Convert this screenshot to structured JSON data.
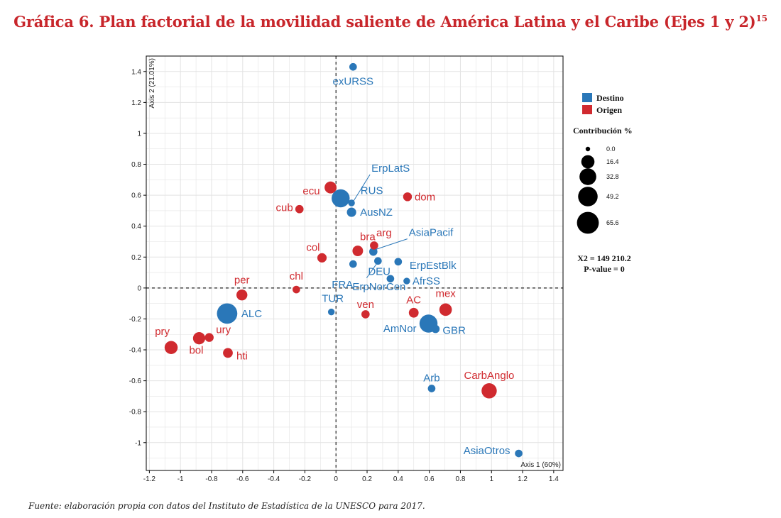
{
  "header": {
    "title": "Gráfica 6. Plan factorial de la movilidad saliente de América Latina y el Caribe (Ejes 1 y 2)",
    "title_footnote": "15"
  },
  "footer": {
    "source": "Fuente: elaboración propia con datos del Instituto de Estadística de la UNESCO para 2017."
  },
  "colors": {
    "Destino": "#2a77b8",
    "Origen": "#d02a2f",
    "axis": "#000000",
    "grid": "#e3e3e3"
  },
  "chart_data": {
    "type": "scatter",
    "xlabel": "Axis 1 (60%)",
    "ylabel": "Axis 2 (21.01%)",
    "xlim": [
      -1.22,
      1.46
    ],
    "ylim": [
      -1.18,
      1.5
    ],
    "xticks": [
      -1.2,
      -1,
      -0.8,
      -0.6,
      -0.4,
      -0.2,
      0,
      0.2,
      0.4,
      0.6,
      0.8,
      1,
      1.2,
      1.4
    ],
    "yticks": [
      1.4,
      1.2,
      1,
      0.8,
      0.6,
      0.4,
      0.2,
      0,
      -0.2,
      -0.4,
      -0.6,
      -0.8,
      -1
    ],
    "grid": true,
    "legend": {
      "groups": [
        {
          "name": "Destino"
        },
        {
          "name": "Origen"
        }
      ],
      "size_title": "Contribución %",
      "size_values": [
        0.0,
        16.4,
        32.8,
        49.2,
        65.6
      ],
      "stats": [
        "X2 = 149 210.2",
        "P-value = 0"
      ]
    },
    "points": [
      {
        "label": "exURSS",
        "group": "Destino",
        "x": 0.11,
        "y": 1.43,
        "contribution": 2
      },
      {
        "label": "ErpLatS",
        "group": "Destino",
        "x": 0.1,
        "y": 0.55,
        "contribution": 1
      },
      {
        "label": "RUS",
        "group": "Destino",
        "x": 0.03,
        "y": 0.58,
        "contribution": 40
      },
      {
        "label": "AusNZ",
        "group": "Destino",
        "x": 0.1,
        "y": 0.49,
        "contribution": 5
      },
      {
        "label": "AsiaPacif",
        "group": "Destino",
        "x": 0.24,
        "y": 0.235,
        "contribution": 3
      },
      {
        "label": "ErpEstBlk",
        "group": "Destino",
        "x": 0.4,
        "y": 0.17,
        "contribution": 2
      },
      {
        "label": "FRA",
        "group": "Destino",
        "x": 0.11,
        "y": 0.155,
        "contribution": 2
      },
      {
        "label": "DEU",
        "group": "Destino",
        "x": 0.27,
        "y": 0.175,
        "contribution": 2
      },
      {
        "label": "AfrSS",
        "group": "Destino",
        "x": 0.455,
        "y": 0.045,
        "contribution": 1
      },
      {
        "label": "ErpNorCen",
        "group": "Destino",
        "x": 0.35,
        "y": 0.06,
        "contribution": 2
      },
      {
        "label": "TUR",
        "group": "Destino",
        "x": -0.03,
        "y": -0.155,
        "contribution": 1
      },
      {
        "label": "ALC",
        "group": "Destino",
        "x": -0.7,
        "y": -0.165,
        "contribution": 55
      },
      {
        "label": "AmNor",
        "group": "Destino",
        "x": 0.595,
        "y": -0.23,
        "contribution": 40
      },
      {
        "label": "GBR",
        "group": "Destino",
        "x": 0.64,
        "y": -0.265,
        "contribution": 3
      },
      {
        "label": "Arb",
        "group": "Destino",
        "x": 0.615,
        "y": -0.65,
        "contribution": 2
      },
      {
        "label": "AsiaOtros",
        "group": "Destino",
        "x": 1.175,
        "y": -1.07,
        "contribution": 2
      },
      {
        "label": "ecu",
        "group": "Origen",
        "x": -0.035,
        "y": 0.65,
        "contribution": 12
      },
      {
        "label": "dom",
        "group": "Origen",
        "x": 0.46,
        "y": 0.59,
        "contribution": 4
      },
      {
        "label": "cub",
        "group": "Origen",
        "x": -0.235,
        "y": 0.51,
        "contribution": 3
      },
      {
        "label": "col",
        "group": "Origen",
        "x": -0.09,
        "y": 0.195,
        "contribution": 5
      },
      {
        "label": "bra",
        "group": "Origen",
        "x": 0.14,
        "y": 0.24,
        "contribution": 8
      },
      {
        "label": "arg",
        "group": "Origen",
        "x": 0.245,
        "y": 0.275,
        "contribution": 3
      },
      {
        "label": "chl",
        "group": "Origen",
        "x": -0.255,
        "y": -0.01,
        "contribution": 2
      },
      {
        "label": "per",
        "group": "Origen",
        "x": -0.605,
        "y": -0.045,
        "contribution": 9
      },
      {
        "label": "ven",
        "group": "Origen",
        "x": 0.19,
        "y": -0.17,
        "contribution": 3
      },
      {
        "label": "AC",
        "group": "Origen",
        "x": 0.5,
        "y": -0.16,
        "contribution": 6
      },
      {
        "label": "mex",
        "group": "Origen",
        "x": 0.705,
        "y": -0.14,
        "contribution": 14
      },
      {
        "label": "pry",
        "group": "Origen",
        "x": -1.06,
        "y": -0.385,
        "contribution": 16
      },
      {
        "label": "bol",
        "group": "Origen",
        "x": -0.88,
        "y": -0.325,
        "contribution": 13
      },
      {
        "label": "ury",
        "group": "Origen",
        "x": -0.815,
        "y": -0.32,
        "contribution": 4
      },
      {
        "label": "hti",
        "group": "Origen",
        "x": -0.695,
        "y": -0.42,
        "contribution": 6
      },
      {
        "label": "CarbAnglo",
        "group": "Origen",
        "x": 0.985,
        "y": -0.665,
        "contribution": 25
      }
    ]
  }
}
